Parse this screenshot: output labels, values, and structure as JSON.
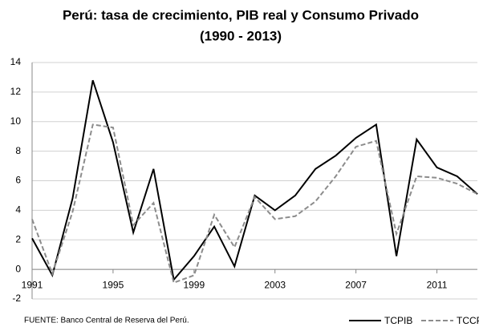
{
  "chart_data": {
    "type": "line",
    "title": "Perú: tasa de crecimiento, PIB real y Consumo Privado",
    "subtitle": "(1990 - 2013)",
    "x": [
      1991,
      1992,
      1993,
      1994,
      1995,
      1996,
      1997,
      1998,
      1999,
      2000,
      2001,
      2002,
      2003,
      2004,
      2005,
      2006,
      2007,
      2008,
      2009,
      2010,
      2011,
      2012,
      2013
    ],
    "series": [
      {
        "name": "TCPIB",
        "color": "#000000",
        "dash": false,
        "values": [
          2.1,
          -0.4,
          4.8,
          12.8,
          8.6,
          2.5,
          6.8,
          -0.7,
          0.9,
          2.9,
          0.2,
          5.0,
          4.0,
          5.0,
          6.8,
          7.7,
          8.9,
          9.8,
          0.9,
          8.8,
          6.9,
          6.3,
          5.1
        ]
      },
      {
        "name": "TCCP",
        "color": "#8c8c8c",
        "dash": true,
        "values": [
          3.4,
          -0.3,
          3.9,
          9.8,
          9.6,
          3.0,
          4.5,
          -0.9,
          -0.4,
          3.7,
          1.5,
          4.9,
          3.4,
          3.6,
          4.6,
          6.3,
          8.3,
          8.7,
          2.4,
          6.3,
          6.2,
          5.8,
          5.1
        ]
      }
    ],
    "xlim": [
      1991,
      2013
    ],
    "xticks": [
      1991,
      1995,
      1999,
      2003,
      2007,
      2011
    ],
    "ylim": [
      -2,
      14
    ],
    "yticks": [
      -2,
      0,
      2,
      4,
      6,
      8,
      10,
      12,
      14
    ],
    "grid": true,
    "legend": "bottom-right",
    "source": "FUENTE: Banco Central de Reserva del Perú."
  }
}
